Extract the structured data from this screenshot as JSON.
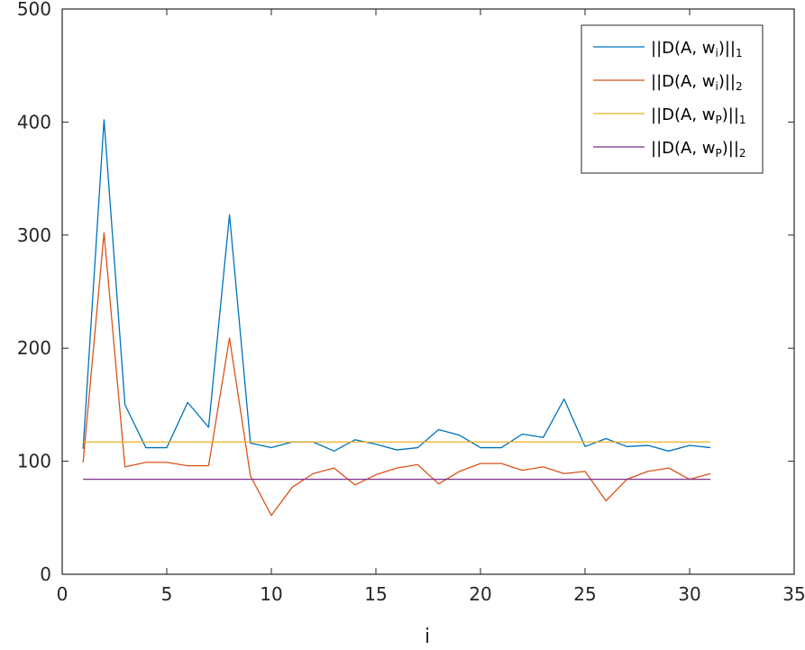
{
  "chart_data": {
    "type": "line",
    "title": "",
    "xlabel": "i",
    "ylabel": "",
    "xlim": [
      0,
      35
    ],
    "ylim": [
      0,
      500
    ],
    "xticks": [
      0,
      5,
      10,
      15,
      20,
      25,
      30,
      35
    ],
    "yticks": [
      0,
      100,
      200,
      300,
      400,
      500
    ],
    "grid": false,
    "legend_position": "top-right",
    "x": [
      1,
      2,
      3,
      4,
      5,
      6,
      7,
      8,
      9,
      10,
      11,
      12,
      13,
      14,
      15,
      16,
      17,
      18,
      19,
      20,
      21,
      22,
      23,
      24,
      25,
      26,
      27,
      28,
      29,
      30,
      31
    ],
    "series": [
      {
        "name": "||D(A, wi)||1",
        "label_main": "||D(A, w",
        "label_sub": "i",
        "label_tail": ")||",
        "label_tail_sub": "1",
        "color": "#0072BD",
        "values": [
          111,
          402,
          150,
          112,
          112,
          152,
          130,
          318,
          116,
          112,
          117,
          117,
          109,
          119,
          115,
          110,
          112,
          128,
          123,
          112,
          112,
          124,
          121,
          155,
          113,
          120,
          113,
          114,
          109,
          114,
          112
        ]
      },
      {
        "name": "||D(A, wi)||2",
        "label_main": "||D(A, w",
        "label_sub": "i",
        "label_tail": ")||",
        "label_tail_sub": "2",
        "color": "#D95319",
        "values": [
          99,
          302,
          95,
          99,
          99,
          96,
          96,
          209,
          87,
          52,
          77,
          89,
          94,
          79,
          88,
          94,
          97,
          80,
          91,
          98,
          98,
          92,
          95,
          89,
          91,
          65,
          84,
          91,
          94,
          84,
          89
        ]
      },
      {
        "name": "||D(A, wP)||1",
        "label_main": "||D(A, w",
        "label_sub": "P",
        "label_tail": ")||",
        "label_tail_sub": "1",
        "color": "#EDB120",
        "values": [
          117,
          117,
          117,
          117,
          117,
          117,
          117,
          117,
          117,
          117,
          117,
          117,
          117,
          117,
          117,
          117,
          117,
          117,
          117,
          117,
          117,
          117,
          117,
          117,
          117,
          117,
          117,
          117,
          117,
          117,
          117
        ]
      },
      {
        "name": "||D(A, wP)||2",
        "label_main": "||D(A, w",
        "label_sub": "P",
        "label_tail": ")||",
        "label_tail_sub": "2",
        "color": "#7E2F8E",
        "values": [
          84,
          84,
          84,
          84,
          84,
          84,
          84,
          84,
          84,
          84,
          84,
          84,
          84,
          84,
          84,
          84,
          84,
          84,
          84,
          84,
          84,
          84,
          84,
          84,
          84,
          84,
          84,
          84,
          84,
          84,
          84
        ]
      }
    ]
  }
}
